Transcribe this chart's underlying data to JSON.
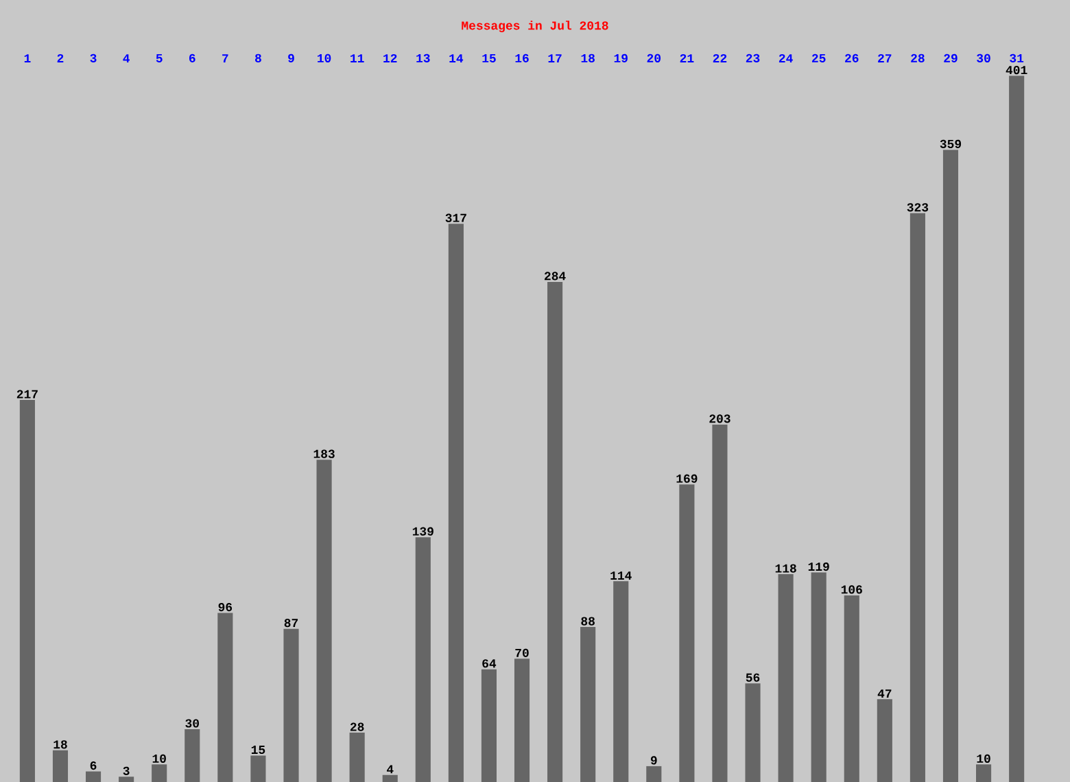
{
  "chart_data": {
    "type": "bar",
    "title": "Messages in Jul 2018",
    "categories": [
      "1",
      "2",
      "3",
      "4",
      "5",
      "6",
      "7",
      "8",
      "9",
      "10",
      "11",
      "12",
      "13",
      "14",
      "15",
      "16",
      "17",
      "18",
      "19",
      "20",
      "21",
      "22",
      "23",
      "24",
      "25",
      "26",
      "27",
      "28",
      "29",
      "30",
      "31"
    ],
    "values": [
      217,
      18,
      6,
      3,
      10,
      30,
      96,
      15,
      87,
      183,
      28,
      4,
      139,
      317,
      64,
      70,
      284,
      88,
      114,
      9,
      169,
      203,
      56,
      118,
      119,
      106,
      47,
      323,
      359,
      10,
      401
    ],
    "color": "#666666",
    "data_labels": true
  }
}
